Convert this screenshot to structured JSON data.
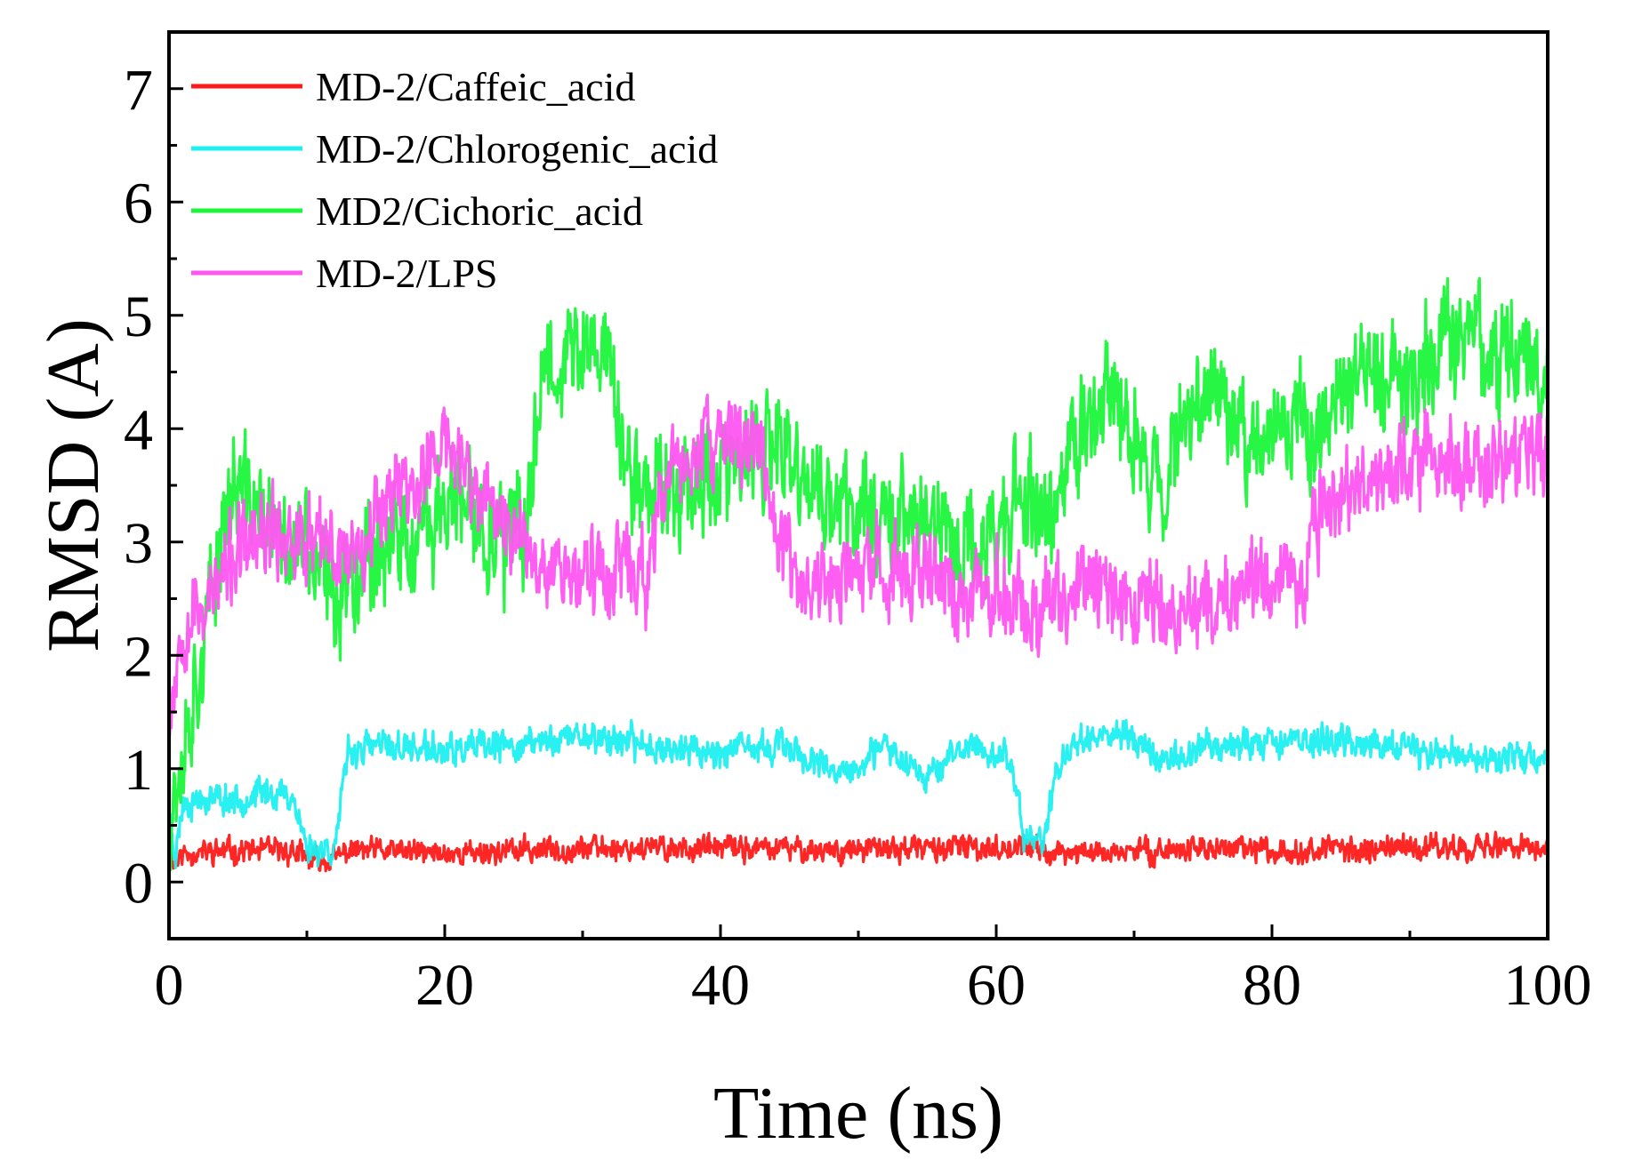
{
  "chart_data": {
    "type": "line",
    "title": "",
    "xlabel": "Time (ns)",
    "ylabel": "RMSD (A)",
    "xlim": [
      0,
      100
    ],
    "ylim": [
      -0.5,
      7.5
    ],
    "xticks": [
      0,
      20,
      40,
      60,
      80,
      100
    ],
    "yticks": [
      0,
      1,
      2,
      3,
      4,
      5,
      6,
      7
    ],
    "grid": false,
    "legend_position": "top-left",
    "series": [
      {
        "name": "MD-2/Caffeic_acid",
        "color": "#ff1a1a",
        "noise": 0.14,
        "seed": 11,
        "values": [
          [
            0,
            0.5
          ],
          [
            0.3,
            0.15
          ],
          [
            1,
            0.25
          ],
          [
            5,
            0.28
          ],
          [
            9,
            0.27
          ],
          [
            10,
            0.2
          ],
          [
            12,
            0.2
          ],
          [
            13,
            0.28
          ],
          [
            20,
            0.25
          ],
          [
            30,
            0.3
          ],
          [
            40,
            0.3
          ],
          [
            50,
            0.28
          ],
          [
            55,
            0.3
          ],
          [
            60,
            0.3
          ],
          [
            62,
            0.32
          ],
          [
            64,
            0.25
          ],
          [
            70,
            0.27
          ],
          [
            75,
            0.3
          ],
          [
            80,
            0.28
          ],
          [
            90,
            0.3
          ],
          [
            95,
            0.32
          ],
          [
            100,
            0.3
          ]
        ]
      },
      {
        "name": "MD-2/Chlorogenic_acid",
        "color": "#1ef0f0",
        "noise": 0.18,
        "seed": 23,
        "values": [
          [
            0,
            0.6
          ],
          [
            0.5,
            0.25
          ],
          [
            1,
            0.7
          ],
          [
            3,
            0.75
          ],
          [
            5,
            0.72
          ],
          [
            7,
            0.8
          ],
          [
            9,
            0.75
          ],
          [
            10,
            0.3
          ],
          [
            12,
            0.3
          ],
          [
            12.5,
            0.7
          ],
          [
            13,
            1.15
          ],
          [
            15,
            1.2
          ],
          [
            20,
            1.15
          ],
          [
            25,
            1.2
          ],
          [
            30,
            1.3
          ],
          [
            35,
            1.2
          ],
          [
            40,
            1.15
          ],
          [
            45,
            1.2
          ],
          [
            48,
            0.95
          ],
          [
            50,
            1.0
          ],
          [
            52,
            1.2
          ],
          [
            55,
            0.95
          ],
          [
            58,
            1.2
          ],
          [
            61,
            1.1
          ],
          [
            62,
            0.4
          ],
          [
            63.5,
            0.4
          ],
          [
            64.5,
            1.0
          ],
          [
            66,
            1.3
          ],
          [
            70,
            1.3
          ],
          [
            72,
            1.05
          ],
          [
            75,
            1.2
          ],
          [
            80,
            1.25
          ],
          [
            85,
            1.25
          ],
          [
            90,
            1.15
          ],
          [
            95,
            1.1
          ],
          [
            100,
            1.1
          ]
        ]
      },
      {
        "name": "MD2/Cichoric_acid",
        "color": "#1cf53a",
        "noise": 0.65,
        "seed": 37,
        "values": [
          [
            0,
            0.6
          ],
          [
            1,
            1.2
          ],
          [
            2,
            1.8
          ],
          [
            3,
            2.4
          ],
          [
            4,
            3.3
          ],
          [
            5,
            3.5
          ],
          [
            8,
            3.0
          ],
          [
            10,
            2.9
          ],
          [
            12,
            2.5
          ],
          [
            14,
            2.9
          ],
          [
            16,
            3.0
          ],
          [
            18,
            2.9
          ],
          [
            20,
            3.4
          ],
          [
            24,
            3.0
          ],
          [
            26,
            3.1
          ],
          [
            27,
            4.6
          ],
          [
            32,
            4.7
          ],
          [
            33,
            3.6
          ],
          [
            35,
            3.5
          ],
          [
            40,
            3.6
          ],
          [
            44,
            3.8
          ],
          [
            48,
            3.3
          ],
          [
            52,
            3.3
          ],
          [
            55,
            3.2
          ],
          [
            58,
            2.9
          ],
          [
            60,
            3.1
          ],
          [
            62,
            3.4
          ],
          [
            64,
            3.2
          ],
          [
            66,
            4.0
          ],
          [
            68,
            4.3
          ],
          [
            70,
            3.9
          ],
          [
            72,
            3.5
          ],
          [
            75,
            4.5
          ],
          [
            78,
            4.0
          ],
          [
            80,
            3.9
          ],
          [
            84,
            4.1
          ],
          [
            86,
            4.5
          ],
          [
            90,
            4.4
          ],
          [
            94,
            4.9
          ],
          [
            98,
            4.6
          ],
          [
            100,
            4.5
          ]
        ]
      },
      {
        "name": "MD-2/LPS",
        "color": "#ff55f2",
        "noise": 0.5,
        "seed": 53,
        "values": [
          [
            0,
            1.5
          ],
          [
            1,
            2.3
          ],
          [
            3,
            2.5
          ],
          [
            5,
            2.9
          ],
          [
            8,
            3.1
          ],
          [
            10,
            3.0
          ],
          [
            12,
            2.9
          ],
          [
            14,
            3.0
          ],
          [
            16,
            3.5
          ],
          [
            18,
            3.5
          ],
          [
            20,
            3.9
          ],
          [
            22,
            3.5
          ],
          [
            24,
            3.2
          ],
          [
            26,
            3.0
          ],
          [
            28,
            2.8
          ],
          [
            30,
            2.7
          ],
          [
            33,
            2.8
          ],
          [
            35,
            2.7
          ],
          [
            36,
            3.6
          ],
          [
            40,
            3.9
          ],
          [
            43,
            3.9
          ],
          [
            44,
            3.0
          ],
          [
            46,
            2.6
          ],
          [
            50,
            2.7
          ],
          [
            55,
            2.8
          ],
          [
            57,
            2.5
          ],
          [
            60,
            2.6
          ],
          [
            63,
            2.4
          ],
          [
            66,
            2.6
          ],
          [
            70,
            2.5
          ],
          [
            74,
            2.4
          ],
          [
            76,
            2.5
          ],
          [
            80,
            2.7
          ],
          [
            82,
            2.6
          ],
          [
            84,
            3.4
          ],
          [
            88,
            3.6
          ],
          [
            92,
            3.8
          ],
          [
            95,
            3.6
          ],
          [
            100,
            3.8
          ]
        ]
      }
    ]
  }
}
